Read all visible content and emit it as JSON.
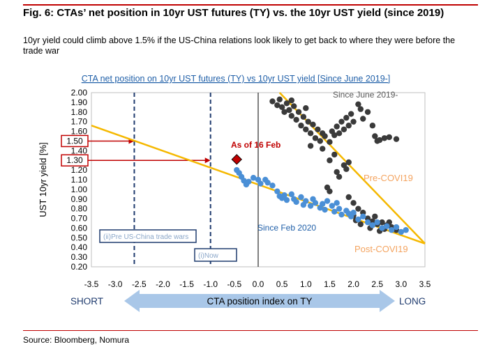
{
  "header": {
    "title": "Fig. 6: CTAs’ net position in 10yr UST futures (TY) vs. the 10yr UST yield (since 2019)",
    "subtitle": "10yr yield could climb above 1.5% if the US-China relations look likely to get back to where they were before the trade war"
  },
  "footer": {
    "source": "Source: Bloomberg, Nomura"
  },
  "colors": {
    "accent_red": "#c00000",
    "dark_dots": "#3a3a3a",
    "blue_dots": "#4a8fd6",
    "trend_yellow": "#f5b800",
    "label_orange": "#f4a460",
    "navy": "#1f3b6e",
    "arrow_blue": "#a9c7e8"
  },
  "chart_data": {
    "type": "scatter",
    "title": "CTA net  position on 10yr UST futures (TY) vs 10yr UST yield [Since June 2019-]",
    "xlabel": "CTA position index on TY",
    "ylabel": "UST 10yr yield [%]",
    "xlim": [
      -3.5,
      3.5
    ],
    "ylim": [
      0.2,
      2.0
    ],
    "x_ticks": [
      "-3.5",
      "-3.0",
      "-2.5",
      "-2.0",
      "-1.5",
      "-1.0",
      "-0.5",
      "0.0",
      "0.5",
      "1.0",
      "1.5",
      "2.0",
      "2.5",
      "3.0",
      "3.5"
    ],
    "x_tick_values": [
      -3.5,
      -3.0,
      -2.5,
      -2.0,
      -1.5,
      -1.0,
      -0.5,
      0.0,
      0.5,
      1.0,
      1.5,
      2.0,
      2.5,
      3.0,
      3.5
    ],
    "y_ticks": [
      "2.00",
      "1.90",
      "1.80",
      "1.70",
      "1.60",
      "1.50",
      "1.40",
      "1.30",
      "1.20",
      "1.10",
      "1.00",
      "0.90",
      "0.80",
      "0.70",
      "0.60",
      "0.50",
      "0.40",
      "0.30",
      "0.20"
    ],
    "y_tick_values": [
      2.0,
      1.9,
      1.8,
      1.7,
      1.6,
      1.5,
      1.4,
      1.3,
      1.2,
      1.1,
      1.0,
      0.9,
      0.8,
      0.7,
      0.6,
      0.5,
      0.4,
      0.3,
      0.2
    ],
    "axis_left_label": "SHORT",
    "axis_right_label": "LONG",
    "series": [
      {
        "name": "Since June 2019-",
        "color": "#3a3a3a",
        "points": [
          [
            0.3,
            1.91
          ],
          [
            0.4,
            1.87
          ],
          [
            0.45,
            1.93
          ],
          [
            0.5,
            1.85
          ],
          [
            0.55,
            1.8
          ],
          [
            0.6,
            1.89
          ],
          [
            0.65,
            1.82
          ],
          [
            0.7,
            1.92
          ],
          [
            0.7,
            1.76
          ],
          [
            0.75,
            1.86
          ],
          [
            0.8,
            1.72
          ],
          [
            0.85,
            1.8
          ],
          [
            0.9,
            1.66
          ],
          [
            0.95,
            1.75
          ],
          [
            1.0,
            1.62
          ],
          [
            1.0,
            1.84
          ],
          [
            1.05,
            1.7
          ],
          [
            1.1,
            1.58
          ],
          [
            1.15,
            1.67
          ],
          [
            1.2,
            1.53
          ],
          [
            1.25,
            1.62
          ],
          [
            1.3,
            1.5
          ],
          [
            1.35,
            1.58
          ],
          [
            1.4,
            1.55
          ],
          [
            1.5,
            1.49
          ],
          [
            1.55,
            1.6
          ],
          [
            1.6,
            1.56
          ],
          [
            1.65,
            1.65
          ],
          [
            1.7,
            1.58
          ],
          [
            1.75,
            1.7
          ],
          [
            1.8,
            1.62
          ],
          [
            1.85,
            1.74
          ],
          [
            1.9,
            1.66
          ],
          [
            1.95,
            1.78
          ],
          [
            2.0,
            1.7
          ],
          [
            2.1,
            1.88
          ],
          [
            2.15,
            1.83
          ],
          [
            2.2,
            1.73
          ],
          [
            2.3,
            1.8
          ],
          [
            2.4,
            1.66
          ],
          [
            2.45,
            1.55
          ],
          [
            2.5,
            1.5
          ],
          [
            2.55,
            1.51
          ],
          [
            2.65,
            1.53
          ],
          [
            2.75,
            1.54
          ],
          [
            2.9,
            1.52
          ],
          [
            1.1,
            1.45
          ],
          [
            1.35,
            1.42
          ],
          [
            1.6,
            1.36
          ],
          [
            1.5,
            1.3
          ],
          [
            1.8,
            1.25
          ],
          [
            1.7,
            1.13
          ],
          [
            1.85,
            1.21
          ],
          [
            1.9,
            1.28
          ],
          [
            1.65,
            1.18
          ],
          [
            1.45,
            1.02
          ],
          [
            1.5,
            0.98
          ],
          [
            1.9,
            0.92
          ],
          [
            2.0,
            0.86
          ],
          [
            2.1,
            0.8
          ],
          [
            2.2,
            0.76
          ],
          [
            2.0,
            0.73
          ],
          [
            2.3,
            0.7
          ],
          [
            2.4,
            0.67
          ],
          [
            2.5,
            0.64
          ],
          [
            2.6,
            0.66
          ],
          [
            2.7,
            0.63
          ],
          [
            2.8,
            0.61
          ],
          [
            2.9,
            0.58
          ],
          [
            2.15,
            0.64
          ],
          [
            2.35,
            0.6
          ],
          [
            2.55,
            0.57
          ],
          [
            2.05,
            0.68
          ],
          [
            2.65,
            0.59
          ],
          [
            2.45,
            0.72
          ],
          [
            2.75,
            0.66
          ]
        ]
      },
      {
        "name": "Since Feb 2020",
        "color": "#4a8fd6",
        "points": [
          [
            -0.45,
            1.2
          ],
          [
            -0.4,
            1.17
          ],
          [
            -0.35,
            1.13
          ],
          [
            -0.3,
            1.09
          ],
          [
            -0.25,
            1.05
          ],
          [
            -0.2,
            1.08
          ],
          [
            -0.1,
            1.12
          ],
          [
            0.0,
            1.1
          ],
          [
            0.05,
            1.06
          ],
          [
            0.15,
            1.1
          ],
          [
            0.2,
            1.07
          ],
          [
            0.3,
            1.04
          ],
          [
            0.4,
            0.98
          ],
          [
            0.45,
            0.93
          ],
          [
            0.5,
            0.91
          ],
          [
            0.55,
            0.94
          ],
          [
            0.6,
            0.89
          ],
          [
            0.7,
            0.95
          ],
          [
            0.75,
            0.9
          ],
          [
            0.8,
            0.87
          ],
          [
            0.9,
            0.92
          ],
          [
            0.95,
            0.84
          ],
          [
            1.0,
            0.88
          ],
          [
            1.1,
            0.83
          ],
          [
            1.15,
            0.9
          ],
          [
            1.2,
            0.86
          ],
          [
            1.3,
            0.81
          ],
          [
            1.35,
            0.85
          ],
          [
            1.4,
            0.79
          ],
          [
            1.55,
            0.83
          ],
          [
            1.6,
            0.77
          ],
          [
            1.7,
            0.8
          ],
          [
            1.75,
            0.74
          ],
          [
            1.85,
            0.78
          ],
          [
            1.95,
            0.72
          ],
          [
            2.0,
            0.76
          ],
          [
            2.1,
            0.69
          ],
          [
            2.2,
            0.72
          ],
          [
            2.3,
            0.66
          ],
          [
            2.4,
            0.63
          ],
          [
            2.5,
            0.66
          ],
          [
            2.6,
            0.6
          ],
          [
            2.7,
            0.62
          ],
          [
            2.8,
            0.58
          ],
          [
            2.9,
            0.61
          ],
          [
            3.0,
            0.56
          ],
          [
            3.1,
            0.58
          ],
          [
            1.45,
            0.88
          ],
          [
            1.65,
            0.86
          ],
          [
            1.9,
            0.75
          ]
        ]
      },
      {
        "name": "As of 16 Feb",
        "color": "#c00000",
        "points": [
          [
            -0.45,
            1.31
          ]
        ]
      }
    ],
    "trend_lines": [
      {
        "name": "Post-COVI19",
        "color": "#f5b800",
        "from": [
          -3.5,
          1.66
        ],
        "to": [
          3.5,
          0.44
        ]
      },
      {
        "name": "Pre-COVI19",
        "color": "#f5b800",
        "from": [
          0.45,
          2.0
        ],
        "to": [
          3.5,
          0.44
        ]
      }
    ],
    "reference_lines": [
      {
        "x": -2.6,
        "label": "(ii)Pre US-China trade wars"
      },
      {
        "x": -1.0,
        "label": "(i)Now"
      }
    ],
    "highlight_levels": [
      {
        "y": 1.5,
        "label": "1.50"
      },
      {
        "y": 1.3,
        "label": "1.30"
      }
    ],
    "annotations": {
      "as_of": "As of 16 Feb",
      "since_june": "Since June 2019-",
      "since_feb": "Since Feb 2020",
      "pre_covid": "Pre-COVI19",
      "post_covid": "Post-COVI19"
    }
  }
}
